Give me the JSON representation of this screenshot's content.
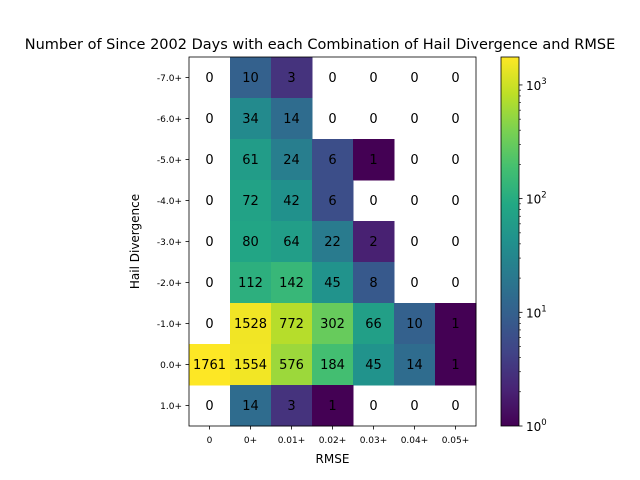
{
  "chart_data": {
    "type": "heatmap",
    "title": "Number of Since 2002 Days with each Combination of Hail Divergence and RMSE",
    "xlabel": "RMSE",
    "ylabel": "Hail Divergence",
    "x_categories": [
      "0",
      "0+",
      "0.01+",
      "0.02+",
      "0.03+",
      "0.04+",
      "0.05+"
    ],
    "y_categories": [
      "-7.0+",
      "-6.0+",
      "-5.0+",
      "-4.0+",
      "-3.0+",
      "-2.0+",
      "-1.0+",
      "0.0+",
      "1.0+"
    ],
    "values": [
      [
        0,
        10,
        3,
        0,
        0,
        0,
        0
      ],
      [
        0,
        34,
        14,
        0,
        0,
        0,
        0
      ],
      [
        0,
        61,
        24,
        6,
        1,
        0,
        0
      ],
      [
        0,
        72,
        42,
        6,
        0,
        0,
        0
      ],
      [
        0,
        80,
        64,
        22,
        2,
        0,
        0
      ],
      [
        0,
        112,
        142,
        45,
        8,
        0,
        0
      ],
      [
        0,
        1528,
        772,
        302,
        66,
        10,
        1
      ],
      [
        1761,
        1554,
        576,
        184,
        45,
        14,
        1
      ],
      [
        0,
        14,
        3,
        1,
        0,
        0,
        0
      ]
    ],
    "colorbar": {
      "scale": "log",
      "colormap": "viridis",
      "range": [
        1,
        1761
      ],
      "ticks": [
        {
          "value": 1,
          "base": "10",
          "exp": "0"
        },
        {
          "value": 10,
          "base": "10",
          "exp": "1"
        },
        {
          "value": 100,
          "base": "10",
          "exp": "2"
        },
        {
          "value": 1000,
          "base": "10",
          "exp": "3"
        }
      ]
    },
    "zero_cells": "blank (white)",
    "grid": false
  }
}
